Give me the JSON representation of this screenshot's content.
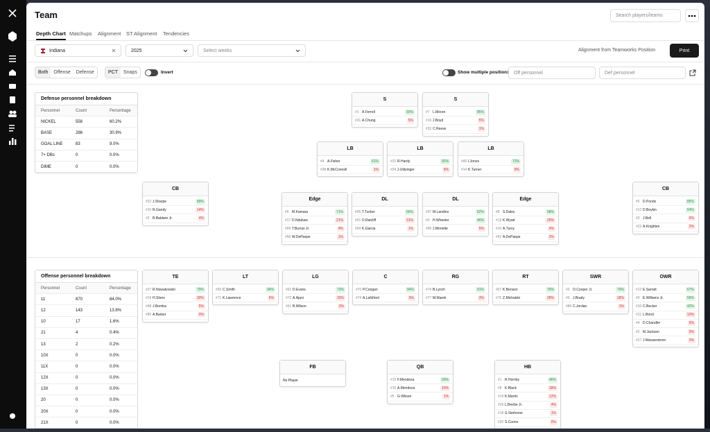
{
  "header": {
    "title": "Team",
    "search_placeholder": "Search players/teams"
  },
  "tabs": [
    "Depth Chart",
    "Matchups",
    "Alignment",
    "ST Alignment",
    "Tendencies"
  ],
  "filters": {
    "team": "Indiana",
    "year": "2025",
    "weeks_placeholder": "Select weeks",
    "alignment_note": "Alignment from Teamworks Position",
    "print": "Print"
  },
  "view": {
    "side": [
      "Both",
      "Offense",
      "Defense"
    ],
    "metric": [
      "PCT",
      "Snaps"
    ],
    "invert": "Invert",
    "multiple": "Show multiple positions",
    "off_personnel": "Off personnel",
    "def_personnel": "Def personnel"
  },
  "defense_breakdown": {
    "title": "Defense personnel breakdown",
    "columns": [
      "Personnel",
      "Count",
      "Percentage"
    ],
    "rows": [
      [
        "NICKEL",
        "558",
        "60.2%"
      ],
      [
        "BASE",
        "286",
        "30.9%"
      ],
      [
        "GOAL LINE",
        "83",
        "9.0%"
      ],
      [
        "7+ DBs",
        "0",
        "0.0%"
      ],
      [
        "DIME",
        "0",
        "0.0%"
      ]
    ]
  },
  "offense_breakdown": {
    "title": "Offense personnel breakdown",
    "columns": [
      "Personnel",
      "Count",
      "Percentage"
    ],
    "rows": [
      [
        "11",
        "870",
        "84.0%"
      ],
      [
        "12",
        "143",
        "13.8%"
      ],
      [
        "10",
        "17",
        "1.6%"
      ],
      [
        "21",
        "4",
        "0.4%"
      ],
      [
        "13",
        "2",
        "0.2%"
      ],
      [
        "10X",
        "0",
        "0.0%"
      ],
      [
        "11X",
        "0",
        "0.0%"
      ],
      [
        "12X",
        "0",
        "0.0%"
      ],
      [
        "13X",
        "0",
        "0.0%"
      ],
      [
        "20",
        "0",
        "0.0%"
      ],
      [
        "20X",
        "0",
        "0.0%"
      ],
      [
        "21X",
        "0",
        "0.0%"
      ]
    ]
  },
  "defense_cards": [
    {
      "position": "S",
      "players": [
        [
          "#1",
          "A.Ferrell",
          "93%"
        ],
        [
          "#31",
          "A.Chung",
          "5%"
        ]
      ]
    },
    {
      "position": "S",
      "players": [
        [
          "#7",
          "L.Moore",
          "85%"
        ],
        [
          "#16",
          "J.Boyd",
          "5%"
        ],
        [
          "#33",
          "C.Reese",
          "1%"
        ]
      ]
    },
    {
      "position": "LB",
      "players": [
        [
          "#4",
          "A.Fisher",
          "61%"
        ],
        [
          "#38",
          "K.McConnell",
          "1%"
        ]
      ]
    },
    {
      "position": "LB",
      "players": [
        [
          "#31",
          "R.Hardy",
          "92%"
        ],
        [
          "#34",
          "J.Ulitzinger",
          "5%"
        ]
      ]
    },
    {
      "position": "LB",
      "players": [
        [
          "#46",
          "I.Jones",
          "72%"
        ],
        [
          "#14",
          "K.Turner",
          "9%"
        ]
      ]
    },
    {
      "position": "CB",
      "players": [
        [
          "#22",
          "J.Sharpe",
          "89%"
        ],
        [
          "#10",
          "R.Gandy",
          "14%"
        ],
        [
          "#2",
          "B.Baldwin Jr.",
          "4%"
        ]
      ]
    },
    {
      "position": "Edge",
      "players": [
        [
          "#6",
          "M.Kamara",
          "71%"
        ],
        [
          "#17",
          "D.Ndukwe",
          "21%"
        ],
        [
          "#99",
          "T.Burras Jr.",
          "4%"
        ],
        [
          "#58",
          "W.DePaepe",
          "1%"
        ]
      ]
    },
    {
      "position": "DL",
      "players": [
        [
          "#95",
          "T.Tucker",
          "66%"
        ],
        [
          "#91",
          "D.Ratcliff",
          "31%"
        ],
        [
          "#94",
          "K.Garcia",
          "1%"
        ]
      ]
    },
    {
      "position": "DL",
      "players": [
        [
          "#97",
          "M.Landino",
          "62%"
        ],
        [
          "#0",
          "H.Wheeler",
          "46%"
        ],
        [
          "#96",
          "J.Monette",
          "5%"
        ]
      ]
    },
    {
      "position": "Edge",
      "players": [
        [
          "#8",
          "S.Daley",
          "58%"
        ],
        [
          "#13",
          "K.Wyatt",
          "26%"
        ],
        [
          "#10",
          "A.Turvy",
          "4%"
        ],
        [
          "#42",
          "A.DePaepe",
          "3%"
        ]
      ]
    },
    {
      "position": "CB",
      "players": [
        [
          "#5",
          "D.Ponds",
          "85%"
        ],
        [
          "#12",
          "D.Boykin",
          "64%"
        ],
        [
          "#3",
          "J.Bell",
          "6%"
        ],
        [
          "#23",
          "A.Knighten",
          "2%"
        ]
      ]
    }
  ],
  "offense_cards": [
    {
      "position": "TE",
      "players": [
        [
          "#27",
          "R.Nowakowski",
          "79%"
        ],
        [
          "#19",
          "H.Stiers",
          "30%"
        ],
        [
          "#48",
          "J.Bomba",
          "5%"
        ],
        [
          "#85",
          "A.Barker",
          "0%"
        ]
      ]
    },
    {
      "position": "LT",
      "players": [
        [
          "#65",
          "C.Smith",
          "94%"
        ],
        [
          "#71",
          "K.Lawrence",
          "6%"
        ]
      ]
    },
    {
      "position": "LG",
      "players": [
        [
          "#62",
          "D.Evans",
          "73%"
        ],
        [
          "#72",
          "A.Ajani",
          "33%"
        ],
        [
          "#61",
          "B.Wilson",
          "3%"
        ]
      ]
    },
    {
      "position": "C",
      "players": [
        [
          "#70",
          "P.Coogan",
          "94%"
        ],
        [
          "#74",
          "A.Leibfried",
          "6%"
        ]
      ]
    },
    {
      "position": "RG",
      "players": [
        [
          "#74",
          "B.Lynch",
          "91%"
        ],
        [
          "#77",
          "M.Marek",
          "3%"
        ]
      ]
    },
    {
      "position": "RT",
      "players": [
        [
          "#67",
          "K.Benson",
          "76%"
        ],
        [
          "#75",
          "Z.Michalski",
          "28%"
        ]
      ]
    },
    {
      "position": "SWR",
      "players": [
        [
          "#3",
          "O.Cooper Jr.",
          "70%"
        ],
        [
          "#0",
          "J.Brady",
          "18%"
        ],
        [
          "#80",
          "C.Jordan",
          "1%"
        ]
      ]
    },
    {
      "position": "OWR",
      "players": [
        [
          "#13",
          "E.Sarratt",
          "67%"
        ],
        [
          "#0",
          "E.Williams Jr.",
          "56%"
        ],
        [
          "#10",
          "C.Becker",
          "42%"
        ],
        [
          "#11",
          "L.Bond",
          "10%"
        ],
        [
          "#4",
          "D.Chandler",
          "5%"
        ],
        [
          "#2",
          "M.Jackson",
          "5%"
        ],
        [
          "#17",
          "J.Wasserstrom",
          "3%"
        ]
      ]
    },
    {
      "position": "FB",
      "players": [],
      "note": "No Player"
    },
    {
      "position": "QB",
      "players": [
        [
          "#15",
          "F.Mendoza",
          "93%"
        ],
        [
          "#16",
          "A.Mendoza",
          "10%"
        ],
        [
          "#5",
          "G.Wilson",
          "1%"
        ]
      ]
    },
    {
      "position": "HB",
      "players": [
        [
          "#1",
          "R.Hornby",
          "46%"
        ],
        [
          "#8",
          "K.Black",
          "39%"
        ],
        [
          "#19",
          "K.Martin",
          "12%"
        ],
        [
          "#29",
          "L.Beebe Jr.",
          "4%"
        ],
        [
          "#18",
          "S.Vanhorse",
          "1%"
        ],
        [
          "#20",
          "S.Cuono",
          "0%"
        ]
      ]
    }
  ]
}
